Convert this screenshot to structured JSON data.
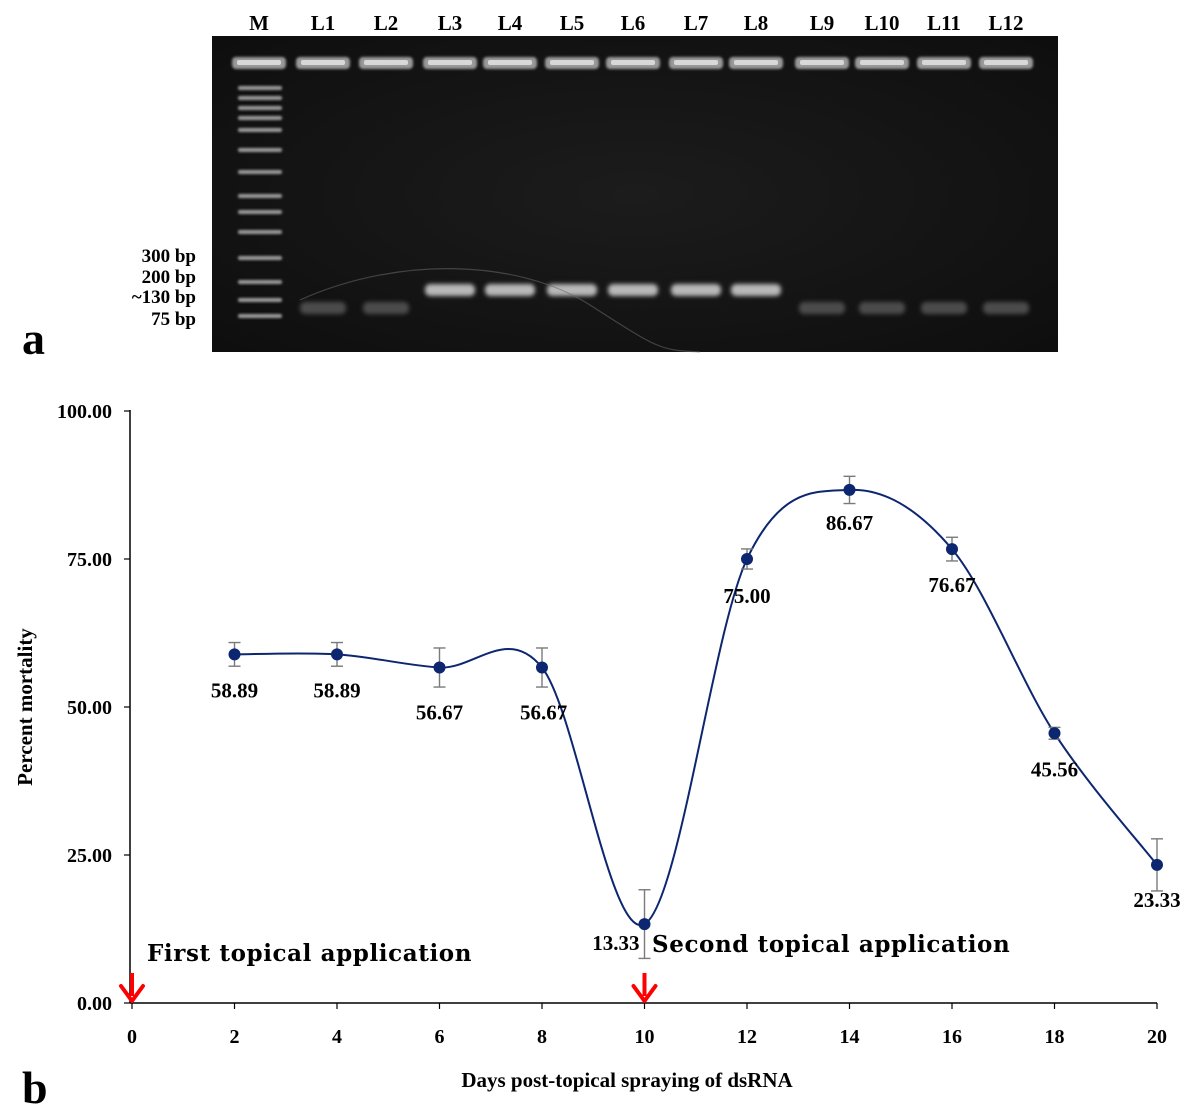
{
  "panel_a": {
    "letter": "a",
    "lane_labels": [
      "M",
      "L1",
      "L2",
      "L3",
      "L4",
      "L5",
      "L6",
      "L7",
      "L8",
      "L9",
      "L10",
      "L11",
      "L12"
    ],
    "marker_labels": [
      "300 bp",
      "200 bp",
      "~130 bp",
      "75 bp"
    ]
  },
  "panel_b": {
    "letter": "b",
    "annotations": [
      "First topical application",
      "Second topical application"
    ]
  },
  "chart_data": {
    "type": "line",
    "title": "",
    "xlabel": "Days post-topical spraying of dsRNA",
    "ylabel": "Percent mortality",
    "x": [
      2,
      4,
      6,
      8,
      10,
      12,
      14,
      16,
      18,
      20
    ],
    "x_ticks": [
      0,
      2,
      4,
      6,
      8,
      10,
      12,
      14,
      16,
      18,
      20
    ],
    "y_ticks": [
      "0.00",
      "25.00",
      "50.00",
      "75.00",
      "100.00"
    ],
    "xlim": [
      0,
      20
    ],
    "ylim": [
      0,
      100
    ],
    "series": [
      {
        "values": [
          58.89,
          58.89,
          56.67,
          56.67,
          13.33,
          75.0,
          86.67,
          76.67,
          45.56,
          23.33
        ],
        "labels": [
          "58.89",
          "58.89",
          "56.67",
          "56.67",
          "13.33",
          "75.00",
          "86.67",
          "76.67",
          "45.56",
          "23.33"
        ],
        "error": [
          2.0,
          2.0,
          3.3,
          3.3,
          5.8,
          1.7,
          2.3,
          2.0,
          1.0,
          4.4
        ],
        "color": "#0d2670"
      }
    ],
    "arrows_at_x": [
      0,
      10
    ],
    "arrow_color": "#ff0000",
    "smooth": true,
    "grid": false,
    "legend": "none"
  }
}
